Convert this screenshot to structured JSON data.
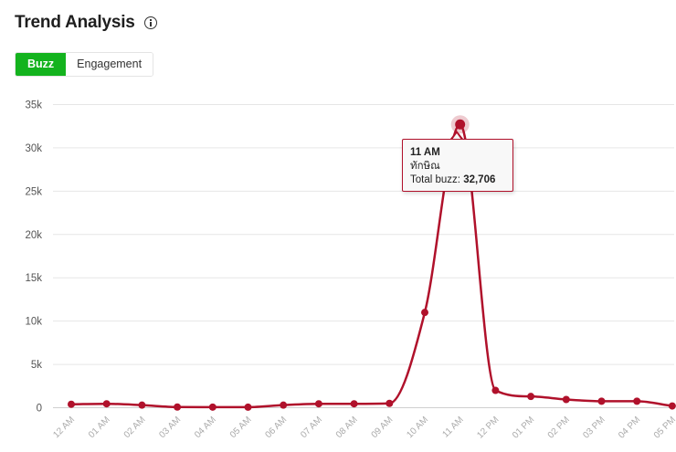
{
  "header": {
    "title": "Trend Analysis",
    "info_icon": "info-circle-icon"
  },
  "tabs": [
    {
      "label": "Buzz",
      "active": true
    },
    {
      "label": "Engagement",
      "active": false
    }
  ],
  "colors": {
    "accent": "#14b31e",
    "series": "#b0112b",
    "grid": "#e6e6e6",
    "axis_text": "#555555"
  },
  "tooltip": {
    "time": "11 AM",
    "series_name": "ทักษิณ",
    "value_label": "Total buzz:",
    "value": "32,706"
  },
  "chart_data": {
    "type": "line",
    "title": "",
    "xlabel": "",
    "ylabel": "",
    "ylim": [
      0,
      35000
    ],
    "y_ticks": [
      "0",
      "5k",
      "10k",
      "15k",
      "20k",
      "25k",
      "30k",
      "35k"
    ],
    "y_tick_values": [
      0,
      5000,
      10000,
      15000,
      20000,
      25000,
      30000,
      35000
    ],
    "categories": [
      "12 AM",
      "01 AM",
      "02 AM",
      "03 AM",
      "04 AM",
      "05 AM",
      "06 AM",
      "07 AM",
      "08 AM",
      "09 AM",
      "10 AM",
      "11 AM",
      "12 PM",
      "01 PM",
      "02 PM",
      "03 PM",
      "04 PM",
      "05 PM"
    ],
    "grid": true,
    "legend": "none",
    "series": [
      {
        "name": "ทักษิณ",
        "values": [
          400,
          450,
          300,
          80,
          70,
          60,
          300,
          450,
          450,
          500,
          11000,
          32706,
          2000,
          1300,
          950,
          750,
          750,
          200
        ]
      }
    ],
    "highlighted_index": 11
  }
}
